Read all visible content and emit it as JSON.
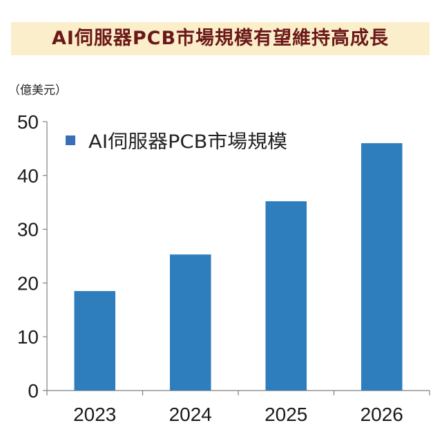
{
  "title": "AI伺服器PCB市場規模有望維持高成長",
  "unit_label": "（億美元）",
  "colors": {
    "bar": "#2e7ebd",
    "legend_swatch": "#3a6fb8",
    "title_text": "#6b1818",
    "title_bg": "#fbeecb",
    "axis": "#7f7f7f"
  },
  "chart_data": {
    "type": "bar",
    "categories": [
      "2023",
      "2024",
      "2025",
      "2026"
    ],
    "series": [
      {
        "name": "AI伺服器PCB市場規模",
        "values": [
          18.5,
          25.3,
          35.2,
          46.0
        ]
      }
    ],
    "ylim": [
      0,
      50
    ],
    "yticks": [
      "0",
      "10",
      "20",
      "30",
      "40",
      "50"
    ],
    "xlabel": "",
    "ylabel": "",
    "grid": false,
    "legend_position": "top-left"
  }
}
